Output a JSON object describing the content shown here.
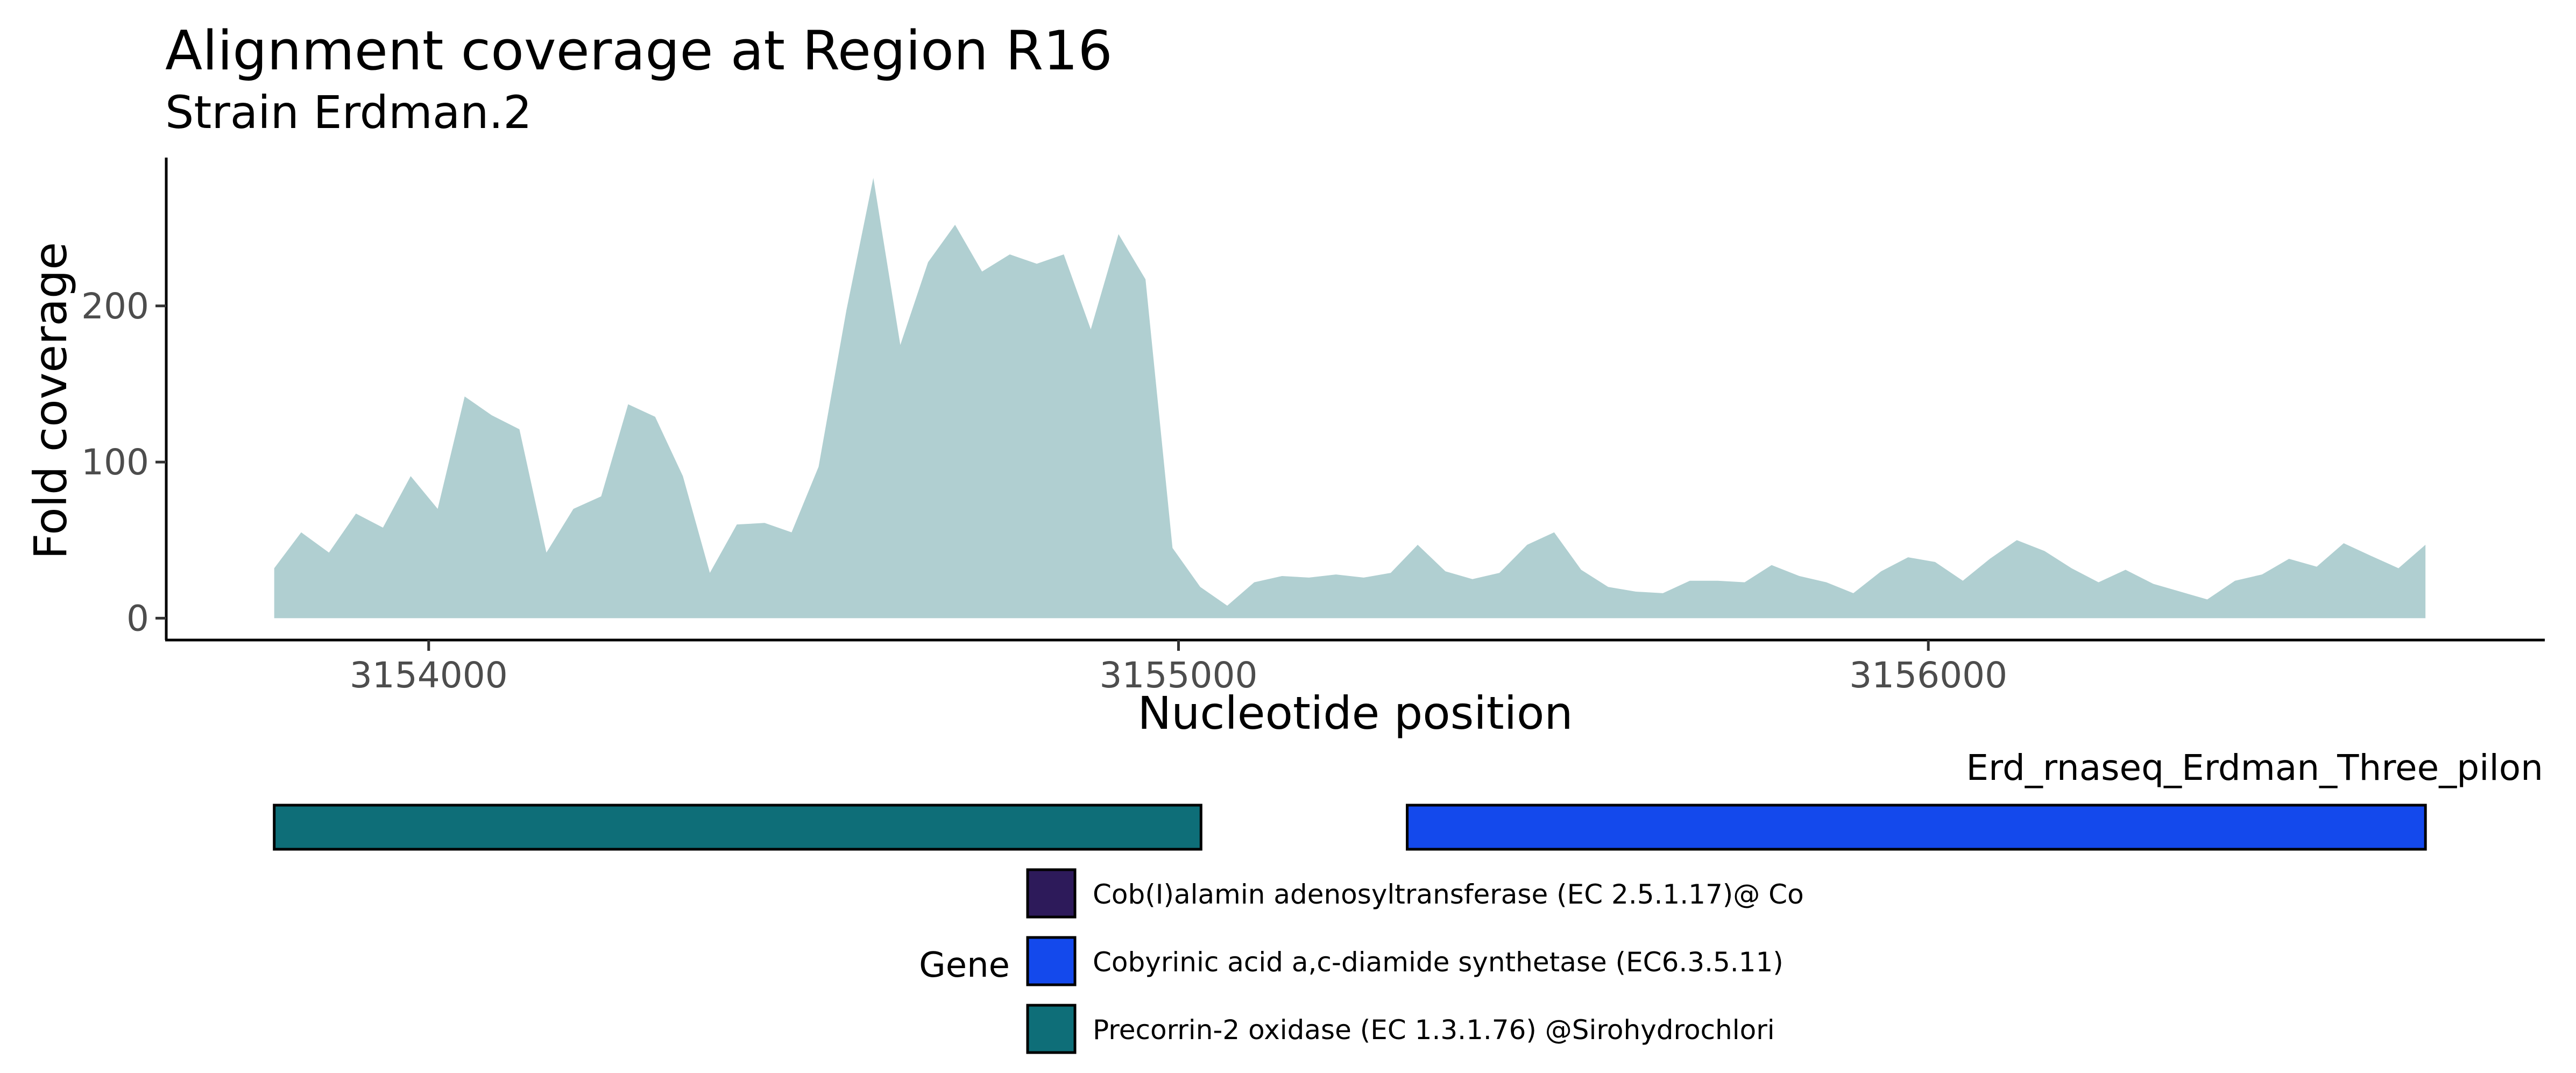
{
  "chart_data": {
    "type": "area",
    "title": "Alignment coverage at Region R16",
    "subtitle": "Strain Erdman.2",
    "xlabel": "Nucleotide position",
    "ylabel": "Fold coverage",
    "xlim": [
      3153650,
      3156820
    ],
    "ylim": [
      -14,
      295
    ],
    "xticks": [
      3154000,
      3155000,
      3156000
    ],
    "xtick_labels": [
      "3154000",
      "3155000",
      "3156000"
    ],
    "yticks": [
      0,
      100,
      200
    ],
    "ytick_labels": [
      "0",
      "100",
      "200"
    ],
    "grid": false,
    "fill_color": "#B0CFD1",
    "series": [
      {
        "x": [
          3153794,
          3153830,
          3153867,
          3153903,
          3153939,
          3153976,
          3154012,
          3154048,
          3154084,
          3154121,
          3154157,
          3154193,
          3154230,
          3154266,
          3154302,
          3154339,
          3154375,
          3154411,
          3154448,
          3154484,
          3154520,
          3154557,
          3154593,
          3154629,
          3154666,
          3154702,
          3154738,
          3154775,
          3154811,
          3154847,
          3154883,
          3154920,
          3154956,
          3154992,
          3155029,
          3155065,
          3155101,
          3155138,
          3155174,
          3155210,
          3155247,
          3155283,
          3155319,
          3155356,
          3155392,
          3155428,
          3155465,
          3155501,
          3155537,
          3155573,
          3155610,
          3155646,
          3155682,
          3155719,
          3155755,
          3155791,
          3155828,
          3155864,
          3155900,
          3155937,
          3155973,
          3156009,
          3156046,
          3156082,
          3156118,
          3156155,
          3156191,
          3156227,
          3156263,
          3156300,
          3156336,
          3156372,
          3156409,
          3156445,
          3156481,
          3156518,
          3156554,
          3156590,
          3156627,
          3156663
        ],
        "values": [
          32,
          55,
          42,
          67,
          58,
          91,
          70,
          142,
          130,
          121,
          42,
          70,
          78,
          137,
          129,
          91,
          29,
          60,
          61,
          55,
          97,
          197,
          282,
          175,
          228,
          252,
          222,
          233,
          227,
          233,
          185,
          246,
          217,
          45,
          20,
          8,
          23,
          27,
          26,
          28,
          26,
          29,
          47,
          30,
          25,
          29,
          47,
          55,
          31,
          20,
          17,
          16,
          24,
          24,
          23,
          34,
          27,
          23,
          16,
          30,
          39,
          36,
          24,
          38,
          50,
          43,
          32,
          23,
          31,
          22,
          17,
          12,
          24,
          28,
          38,
          33,
          48,
          40,
          32,
          47
        ]
      }
    ]
  },
  "gene_track": {
    "track_label": "Erd_rnaseq_Erdman_Three_pilon",
    "genes": [
      {
        "start": 3153794,
        "end": 3155030,
        "color": "#0E6E78"
      },
      {
        "start": 3155305,
        "end": 3156663,
        "color": "#1449EC"
      }
    ]
  },
  "legend": {
    "title": "Gene",
    "items": [
      {
        "label": "Cob(I)alamin adenosyltransferase (EC 2.5.1.17)@ Co",
        "color": "#2D1A5A"
      },
      {
        "label": "Cobyrinic acid a,c-diamide synthetase (EC6.3.5.11)",
        "color": "#1449EC"
      },
      {
        "label": "Precorrin-2 oxidase (EC 1.3.1.76) @Sirohydrochlori",
        "color": "#0E6E78"
      }
    ]
  }
}
